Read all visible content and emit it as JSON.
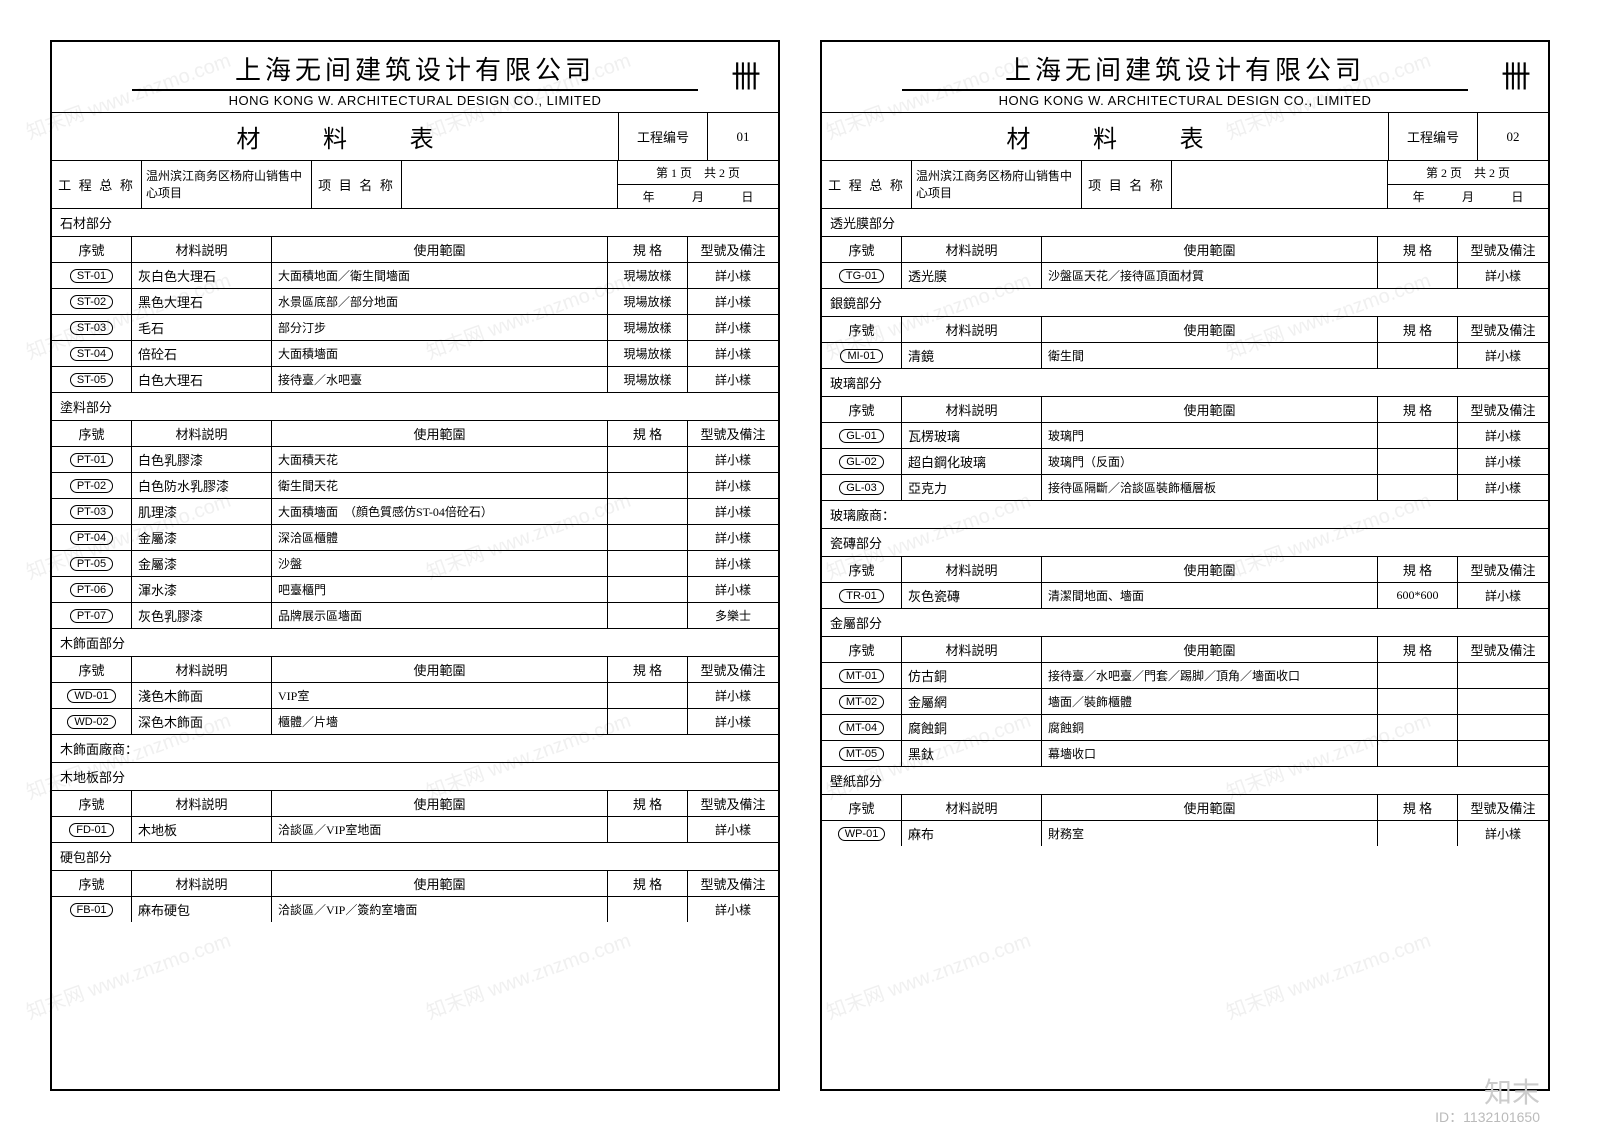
{
  "company_cn": "上海无间建筑设计有限公司",
  "company_en": "HONG KONG W. ARCHITECTURAL DESIGN CO., LIMITED",
  "doc_title": "材 料 表",
  "logo_glyph": "卌",
  "proj_code_lbl": "工程编号",
  "proj_name_full_lbl": "工 程 总 称",
  "proj_name_full": "温州滨江商务区杨府山销售中心项目",
  "proj_sub_lbl": "项 目 名 称",
  "date_y": "年",
  "date_m": "月",
  "date_d": "日",
  "col": {
    "no": "序號",
    "mat": "材料説明",
    "use": "使用範圍",
    "spec": "規 格",
    "rem": "型號及備注"
  },
  "watermark": "知末网 www.znzmo.com",
  "footer_brand": "知末",
  "footer_id": "ID：1132101650",
  "pages": [
    {
      "code": "01",
      "page_info": "第 1 页　共 2 页",
      "sections": [
        {
          "name": "石材部分",
          "rows": [
            {
              "code": "ST-01",
              "mat": "灰白色大理石",
              "use": "大面積地面／衛生間墻面",
              "spec": "現場放樣",
              "rem": "詳小樣"
            },
            {
              "code": "ST-02",
              "mat": "黑色大理石",
              "use": "水景區底部／部分地面",
              "spec": "現場放樣",
              "rem": "詳小樣"
            },
            {
              "code": "ST-03",
              "mat": "毛石",
              "use": "部分汀步",
              "spec": "現場放樣",
              "rem": "詳小樣"
            },
            {
              "code": "ST-04",
              "mat": "倍砼石",
              "use": "大面積墻面",
              "spec": "現場放樣",
              "rem": "詳小樣"
            },
            {
              "code": "ST-05",
              "mat": "白色大理石",
              "use": "接待臺／水吧臺",
              "spec": "現場放樣",
              "rem": "詳小樣"
            }
          ]
        },
        {
          "name": "塗料部分",
          "rows": [
            {
              "code": "PT-01",
              "mat": "白色乳膠漆",
              "use": "大面積天花",
              "spec": "",
              "rem": "詳小樣"
            },
            {
              "code": "PT-02",
              "mat": "白色防水乳膠漆",
              "use": "衛生間天花",
              "spec": "",
              "rem": "詳小樣"
            },
            {
              "code": "PT-03",
              "mat": "肌理漆",
              "use": "大面積墻面　（顔色質感仿ST-04倍砼石）",
              "spec": "",
              "rem": "詳小樣"
            },
            {
              "code": "PT-04",
              "mat": "金屬漆",
              "use": "深洽區櫃體",
              "spec": "",
              "rem": "詳小樣"
            },
            {
              "code": "PT-05",
              "mat": "金屬漆",
              "use": "沙盤",
              "spec": "",
              "rem": "詳小樣"
            },
            {
              "code": "PT-06",
              "mat": "渾水漆",
              "use": "吧臺櫃門",
              "spec": "",
              "rem": "詳小樣"
            },
            {
              "code": "PT-07",
              "mat": "灰色乳膠漆",
              "use": "品牌展示區墻面",
              "spec": "",
              "rem": "多樂士"
            }
          ]
        },
        {
          "name": "木飾面部分",
          "rows": [
            {
              "code": "WD-01",
              "mat": "淺色木飾面",
              "use": "VIP室",
              "spec": "",
              "rem": "詳小樣"
            },
            {
              "code": "WD-02",
              "mat": "深色木飾面",
              "use": "櫃體／片墻",
              "spec": "",
              "rem": "詳小樣"
            }
          ]
        },
        {
          "name": "木飾面廠商：",
          "rows": []
        },
        {
          "name": "木地板部分",
          "rows": [
            {
              "code": "FD-01",
              "mat": "木地板",
              "use": "洽談區／VIP室地面",
              "spec": "",
              "rem": "詳小樣"
            }
          ]
        },
        {
          "name": "硬包部分",
          "rows": [
            {
              "code": "FB-01",
              "mat": "麻布硬包",
              "use": "洽談區／VIP／簽約室墻面",
              "spec": "",
              "rem": "詳小樣"
            }
          ]
        }
      ]
    },
    {
      "code": "02",
      "page_info": "第 2 页　共 2 页",
      "sections": [
        {
          "name": "透光膜部分",
          "rows": [
            {
              "code": "TG-01",
              "mat": "透光膜",
              "use": "沙盤區天花／接待區頂面材質",
              "spec": "",
              "rem": "詳小樣"
            }
          ]
        },
        {
          "name": "銀鏡部分",
          "rows": [
            {
              "code": "MI-01",
              "mat": "清鏡",
              "use": "衛生間",
              "spec": "",
              "rem": "詳小樣"
            }
          ]
        },
        {
          "name": "玻璃部分",
          "rows": [
            {
              "code": "GL-01",
              "mat": "瓦楞玻璃",
              "use": "玻璃門",
              "spec": "",
              "rem": "詳小樣"
            },
            {
              "code": "GL-02",
              "mat": "超白鋼化玻璃",
              "use": "玻璃門（反面）",
              "spec": "",
              "rem": "詳小樣"
            },
            {
              "code": "GL-03",
              "mat": "亞克力",
              "use": "接待區隔斷／洽談區裝飾櫃層板",
              "spec": "",
              "rem": "詳小樣"
            }
          ]
        },
        {
          "name": "玻璃廠商：",
          "rows": []
        },
        {
          "name": "瓷磚部分",
          "rows": [
            {
              "code": "TR-01",
              "mat": "灰色瓷磚",
              "use": "清潔間地面、墻面",
              "spec": "600*600",
              "rem": "詳小樣"
            }
          ]
        },
        {
          "name": "金屬部分",
          "rows": [
            {
              "code": "MT-01",
              "mat": "仿古銅",
              "use": "接待臺／水吧臺／門套／踢脚／頂角／墻面收口",
              "spec": "",
              "rem": ""
            },
            {
              "code": "MT-02",
              "mat": "金屬網",
              "use": "墻面／裝飾櫃體",
              "spec": "",
              "rem": ""
            },
            {
              "code": "MT-04",
              "mat": "腐蝕銅",
              "use": "腐蝕銅",
              "spec": "",
              "rem": ""
            },
            {
              "code": "MT-05",
              "mat": "黑鈦",
              "use": "幕墻收口",
              "spec": "",
              "rem": ""
            }
          ]
        },
        {
          "name": "壁紙部分",
          "rows": [
            {
              "code": "WP-01",
              "mat": "麻布",
              "use": "財務室",
              "spec": "",
              "rem": "詳小樣"
            }
          ]
        }
      ]
    }
  ]
}
